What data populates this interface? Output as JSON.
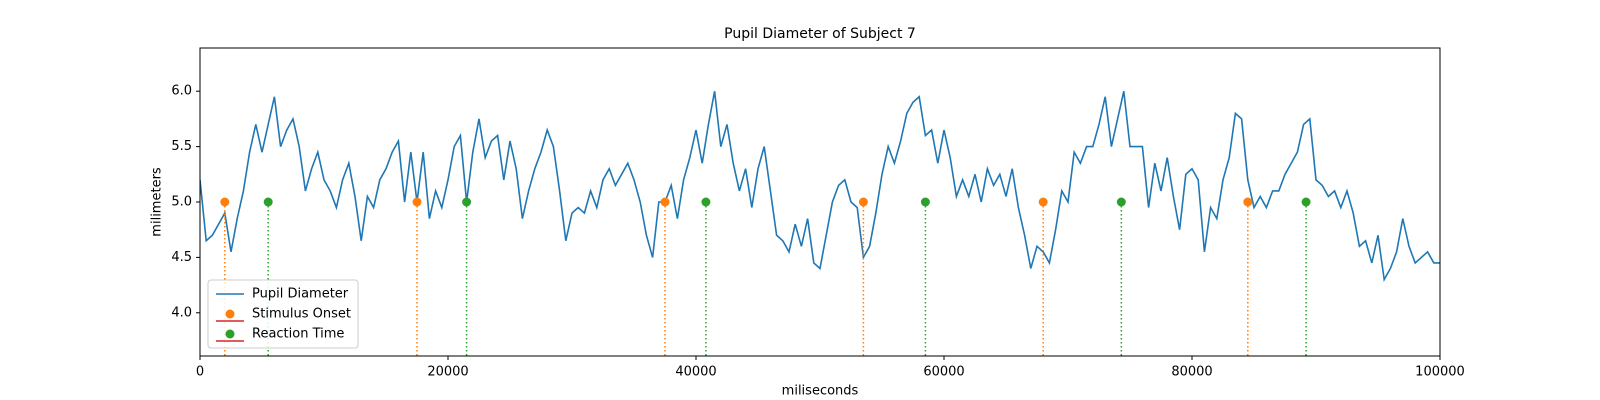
{
  "chart_data": {
    "type": "line",
    "title": "Pupil Diameter of Subject 7",
    "xlabel": "miliseconds",
    "ylabel": "milimeters",
    "xlim": [
      0,
      100000
    ],
    "xticks": [
      0,
      20000,
      40000,
      60000,
      80000,
      100000
    ],
    "ylim": [
      3.61,
      6.39
    ],
    "yticks": [
      {
        "value": 4,
        "label": "4.0"
      },
      4.5,
      {
        "value": 5,
        "label": "5.0"
      },
      5.5,
      {
        "value": 6,
        "label": "6.0"
      }
    ],
    "legend": "lower left",
    "series": [
      {
        "name": "Pupil Diameter",
        "type": "line",
        "color": "#1f77b4",
        "x": [
          0,
          500,
          1000,
          1500,
          2000,
          2500,
          3000,
          3500,
          4000,
          4500,
          5000,
          5500,
          6000,
          6500,
          7000,
          7500,
          8000,
          8500,
          9000,
          9500,
          10000,
          10500,
          11000,
          11500,
          12000,
          12500,
          13000,
          13500,
          14000,
          14500,
          15000,
          15500,
          16000,
          16500,
          17000,
          17500,
          18000,
          18500,
          19000,
          19500,
          20000,
          20500,
          21000,
          21500,
          22000,
          22500,
          23000,
          23500,
          24000,
          24500,
          25000,
          25500,
          26000,
          26500,
          27000,
          27500,
          28000,
          28500,
          29000,
          29500,
          30000,
          30500,
          31000,
          31500,
          32000,
          32500,
          33000,
          33500,
          34000,
          34500,
          35000,
          35500,
          36000,
          36500,
          37000,
          37500,
          38000,
          38500,
          39000,
          39500,
          40000,
          40500,
          41000,
          41500,
          42000,
          42500,
          43000,
          43500,
          44000,
          44500,
          45000,
          45500,
          46000,
          46500,
          47000,
          47500,
          48000,
          48500,
          49000,
          49500,
          50000,
          50500,
          51000,
          51500,
          52000,
          52500,
          53000,
          53500,
          54000,
          54500,
          55000,
          55500,
          56000,
          56500,
          57000,
          57500,
          58000,
          58500,
          59000,
          59500,
          60000,
          60500,
          61000,
          61500,
          62000,
          62500,
          63000,
          63500,
          64000,
          64500,
          65000,
          65500,
          66000,
          66500,
          67000,
          67500,
          68000,
          68500,
          69000,
          69500,
          70000,
          70500,
          71000,
          71500,
          72000,
          72500,
          73000,
          73500,
          74000,
          74500,
          75000,
          75500,
          76000,
          76500,
          77000,
          77500,
          78000,
          78500,
          79000,
          79500,
          80000,
          80500,
          81000,
          81500,
          82000,
          82500,
          83000,
          83500,
          84000,
          84500,
          85000,
          85500,
          86000,
          86500,
          87000,
          87500,
          88000,
          88500,
          89000,
          89500,
          90000,
          90500,
          91000,
          91500,
          92000,
          92500,
          93000,
          93500,
          94000,
          94500,
          95000,
          95500,
          96000,
          96500,
          97000,
          97500,
          98000,
          98500,
          99000,
          99500,
          100000
        ],
        "values": [
          5.2,
          4.65,
          4.7,
          4.8,
          4.9,
          4.55,
          4.85,
          5.1,
          5.45,
          5.7,
          5.45,
          5.7,
          5.95,
          5.5,
          5.65,
          5.75,
          5.5,
          5.1,
          5.3,
          5.45,
          5.2,
          5.1,
          4.95,
          5.2,
          5.35,
          5.05,
          4.65,
          5.05,
          4.95,
          5.2,
          5.3,
          5.45,
          5.55,
          5.0,
          5.45,
          5.0,
          5.45,
          4.85,
          5.1,
          4.95,
          5.2,
          5.5,
          5.6,
          5.0,
          5.45,
          5.75,
          5.4,
          5.55,
          5.6,
          5.2,
          5.55,
          5.3,
          4.85,
          5.1,
          5.3,
          5.45,
          5.65,
          5.5,
          5.1,
          4.65,
          4.9,
          4.95,
          4.9,
          5.1,
          4.95,
          5.2,
          5.3,
          5.15,
          5.25,
          5.35,
          5.2,
          5.0,
          4.7,
          4.5,
          5.0,
          5.0,
          5.15,
          4.85,
          5.2,
          5.4,
          5.65,
          5.35,
          5.7,
          6.0,
          5.5,
          5.7,
          5.35,
          5.1,
          5.3,
          4.95,
          5.3,
          5.5,
          5.1,
          4.7,
          4.65,
          4.55,
          4.8,
          4.6,
          4.85,
          4.45,
          4.4,
          4.7,
          5.0,
          5.15,
          5.2,
          5.0,
          4.95,
          4.5,
          4.6,
          4.9,
          5.25,
          5.5,
          5.35,
          5.55,
          5.8,
          5.9,
          5.95,
          5.6,
          5.65,
          5.35,
          5.65,
          5.4,
          5.05,
          5.2,
          5.05,
          5.25,
          5.0,
          5.3,
          5.15,
          5.25,
          5.05,
          5.3,
          4.95,
          4.7,
          4.4,
          4.6,
          4.55,
          4.45,
          4.75,
          5.1,
          5.0,
          5.45,
          5.35,
          5.5,
          5.5,
          5.7,
          5.95,
          5.5,
          5.75,
          6.0,
          5.5,
          5.5,
          5.5,
          4.95,
          5.35,
          5.1,
          5.4,
          5.05,
          4.75,
          5.25,
          5.3,
          5.2,
          4.55,
          4.95,
          4.85,
          5.2,
          5.4,
          5.8,
          5.75,
          5.2,
          4.95,
          5.05,
          4.95,
          5.1,
          5.1,
          5.25,
          5.35,
          5.45,
          5.7,
          5.75,
          5.2,
          5.15,
          5.05,
          5.1,
          4.95,
          5.1,
          4.9,
          4.6,
          4.65,
          4.45,
          4.7,
          4.3,
          4.4,
          4.55,
          4.85,
          4.6,
          4.45,
          4.5,
          4.55,
          4.45,
          4.45
        ]
      },
      {
        "name": "Stimulus Onset",
        "type": "stem",
        "color": "#ff7f0e",
        "baseline_color": "#d62728",
        "x": [
          2000,
          17500,
          37500,
          53500,
          68000,
          84500
        ],
        "values": [
          5,
          5,
          5,
          5,
          5,
          5
        ]
      },
      {
        "name": "Reaction Time",
        "type": "stem",
        "color": "#2ca02c",
        "baseline_color": "#d62728",
        "x": [
          5500,
          21500,
          40800,
          58500,
          74300,
          89200
        ],
        "values": [
          5,
          5,
          5,
          5,
          5,
          5
        ]
      }
    ]
  }
}
